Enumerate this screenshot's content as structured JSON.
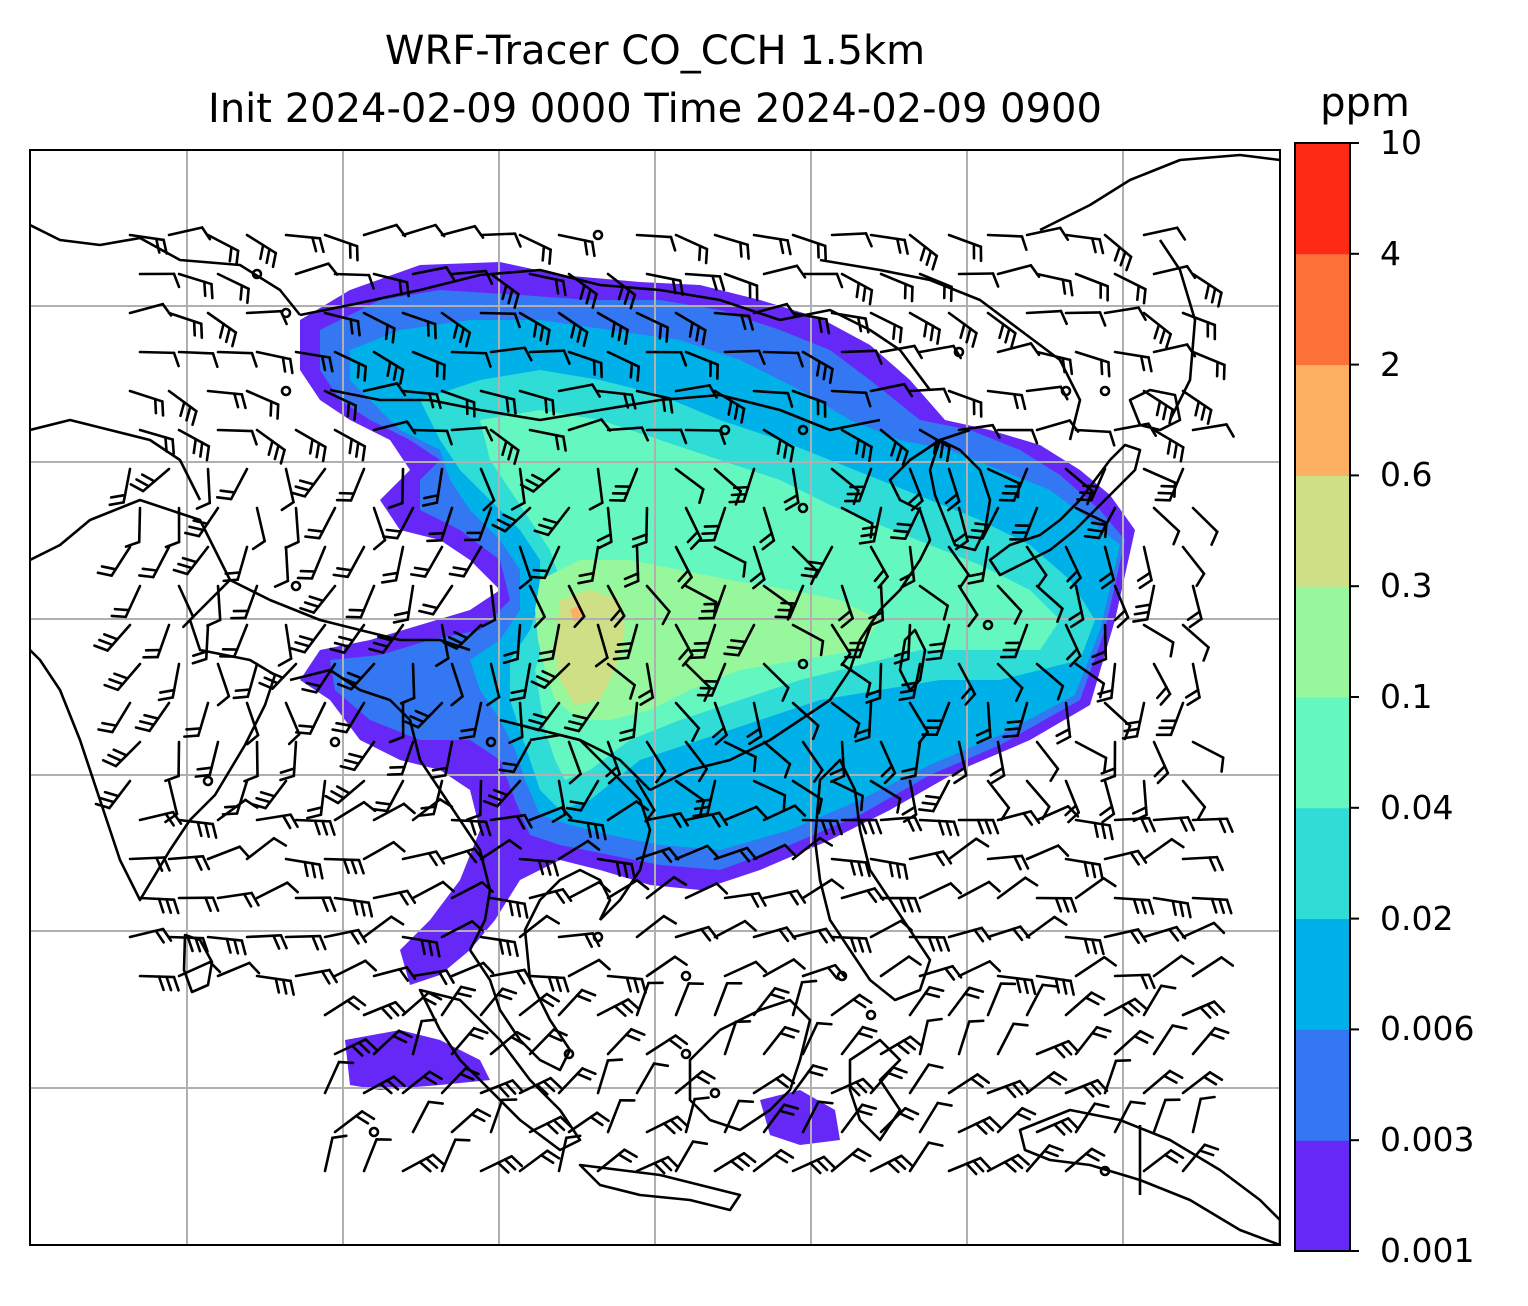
{
  "title": {
    "line1": "WRF-Tracer CO_CCH 1.5km",
    "line2": "Init 2024-02-09 0000 Time 2024-02-09 0900"
  },
  "colorbar": {
    "unit": "ppm",
    "tick_labels": [
      "0.001",
      "0.003",
      "0.006",
      "0.02",
      "0.04",
      "0.1",
      "0.3",
      "0.6",
      "2",
      "4",
      "10"
    ],
    "colors": [
      "#6528f7",
      "#3377f2",
      "#00b0e8",
      "#2fdcd6",
      "#64f7c0",
      "#97f79c",
      "#cfdf85",
      "#fdb062",
      "#fd7139",
      "#fe2a16"
    ]
  },
  "map": {
    "features": [
      "coastlines",
      "country-borders",
      "gridlines",
      "co-tracer-concentration-fill",
      "wind-barbs",
      "calm-wind-circles"
    ],
    "gridline_color": "#b0b0b0"
  }
}
